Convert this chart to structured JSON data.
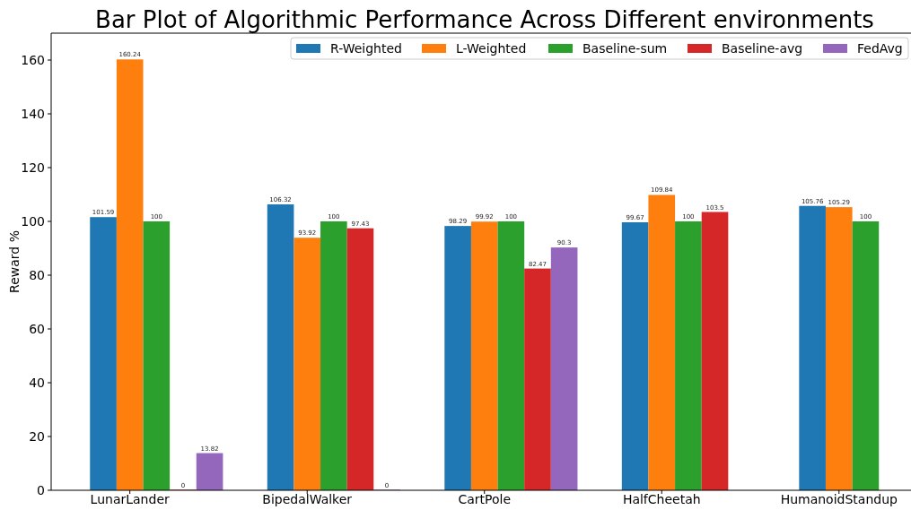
{
  "chart_data": {
    "type": "bar",
    "title": "Bar Plot of Algorithmic Performance Across Different environments",
    "ylabel": "Reward %",
    "categories": [
      "LunarLander",
      "BipedalWalker",
      "CartPole",
      "HalfCheetah",
      "HumanoidStandup"
    ],
    "series": [
      {
        "name": "R-Weighted",
        "color": "#1f77b4",
        "values": [
          101.59,
          106.32,
          98.29,
          99.67,
          105.76
        ]
      },
      {
        "name": "L-Weighted",
        "color": "#ff7f0e",
        "values": [
          160.24,
          93.92,
          99.92,
          109.84,
          105.29
        ]
      },
      {
        "name": "Baseline-sum",
        "color": "#2ca02c",
        "values": [
          100,
          100,
          100,
          100,
          100
        ]
      },
      {
        "name": "Baseline-avg",
        "color": "#d62728",
        "values": [
          0,
          97.43,
          82.47,
          103.5,
          null
        ]
      },
      {
        "name": "FedAvg",
        "color": "#9467bd",
        "values": [
          13.82,
          0,
          90.3,
          null,
          null
        ]
      }
    ],
    "ylim": [
      0,
      170
    ],
    "yticks": [
      0,
      20,
      40,
      60,
      80,
      100,
      120,
      140,
      160
    ],
    "data_labels": true,
    "legend": "top right",
    "grid": false
  }
}
